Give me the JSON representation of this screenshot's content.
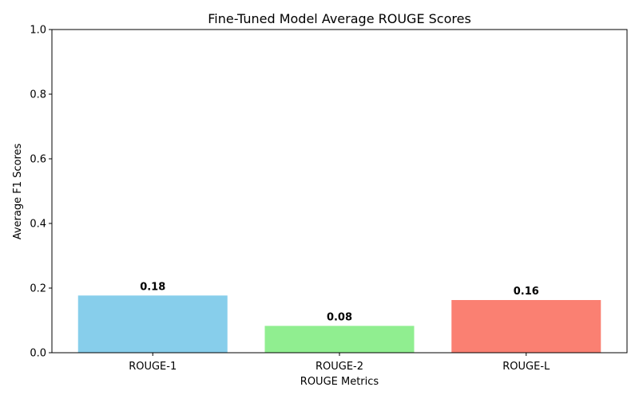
{
  "chart_data": {
    "type": "bar",
    "title": "Fine-Tuned Model Average ROUGE Scores",
    "xlabel": "ROUGE Metrics",
    "ylabel": "Average F1 Scores",
    "categories": [
      "ROUGE-1",
      "ROUGE-2",
      "ROUGE-L"
    ],
    "values": [
      0.177,
      0.083,
      0.163
    ],
    "data_labels": [
      "0.18",
      "0.08",
      "0.16"
    ],
    "colors": [
      "#87ceeb",
      "#90ee90",
      "#fa8072"
    ],
    "ylim": [
      0,
      1.0
    ],
    "yticks": [
      0.0,
      0.2,
      0.4,
      0.6,
      0.8,
      1.0
    ],
    "ytick_labels": [
      "0.0",
      "0.2",
      "0.4",
      "0.6",
      "0.8",
      "1.0"
    ],
    "grid": false,
    "legend": "none"
  }
}
